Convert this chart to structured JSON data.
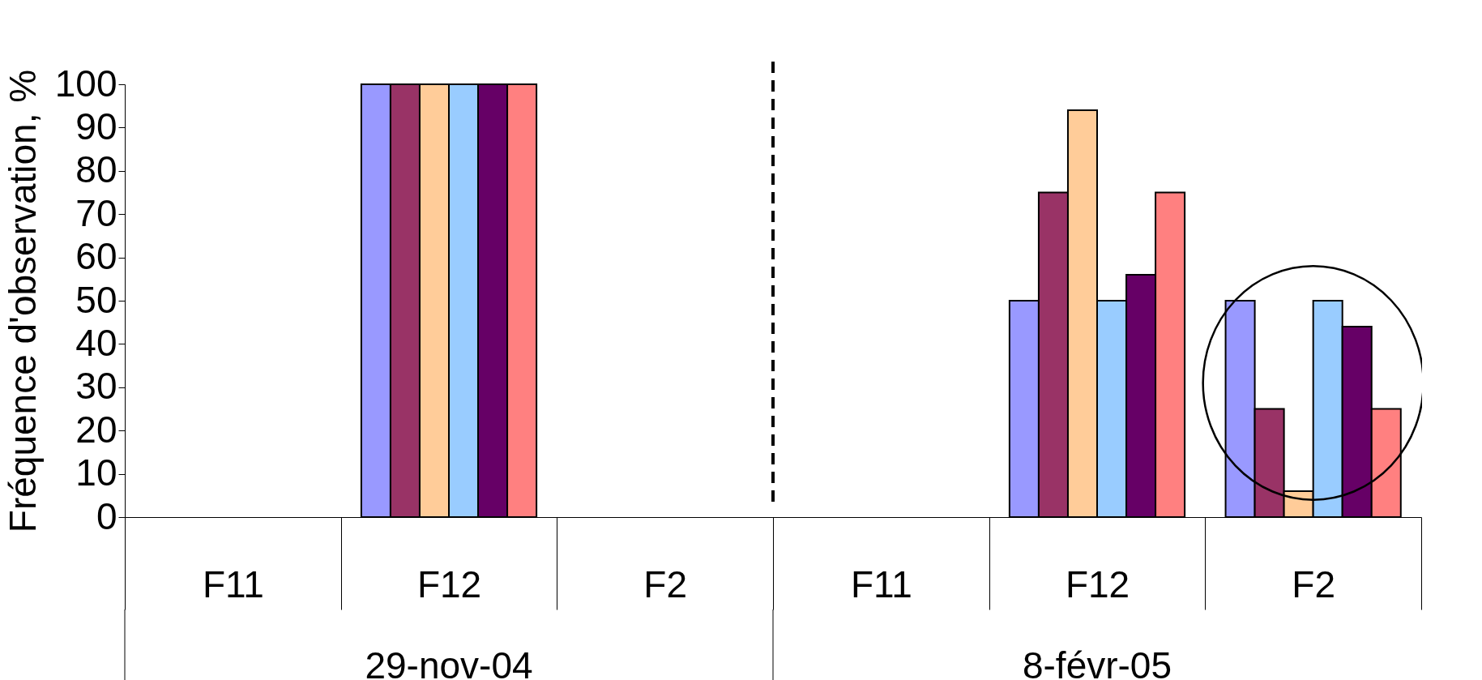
{
  "chart_data": {
    "type": "bar",
    "ylabel": "Fréquence d'observation, %",
    "categories": [
      "F11",
      "F12",
      "F2",
      "F11",
      "F12",
      "F2"
    ],
    "series": [
      {
        "color": "#9999ff",
        "values": [
          null,
          100,
          null,
          null,
          50,
          50
        ]
      },
      {
        "color": "#993366",
        "values": [
          null,
          100,
          null,
          null,
          75,
          25
        ]
      },
      {
        "color": "#ffcc99",
        "values": [
          null,
          100,
          null,
          null,
          94,
          6
        ]
      },
      {
        "color": "#99ccff",
        "values": [
          null,
          100,
          null,
          null,
          50,
          50
        ]
      },
      {
        "color": "#660066",
        "values": [
          null,
          100,
          null,
          null,
          56,
          44
        ]
      },
      {
        "color": "#ff8080",
        "values": [
          null,
          100,
          null,
          null,
          75,
          25
        ]
      }
    ],
    "ylim": [
      0,
      100
    ],
    "yticks": [
      0,
      10,
      20,
      30,
      40,
      50,
      60,
      70,
      80,
      90,
      100
    ],
    "annotations": [
      "29-nov-04",
      "8-févr-05"
    ],
    "grid": false,
    "legend": false
  }
}
